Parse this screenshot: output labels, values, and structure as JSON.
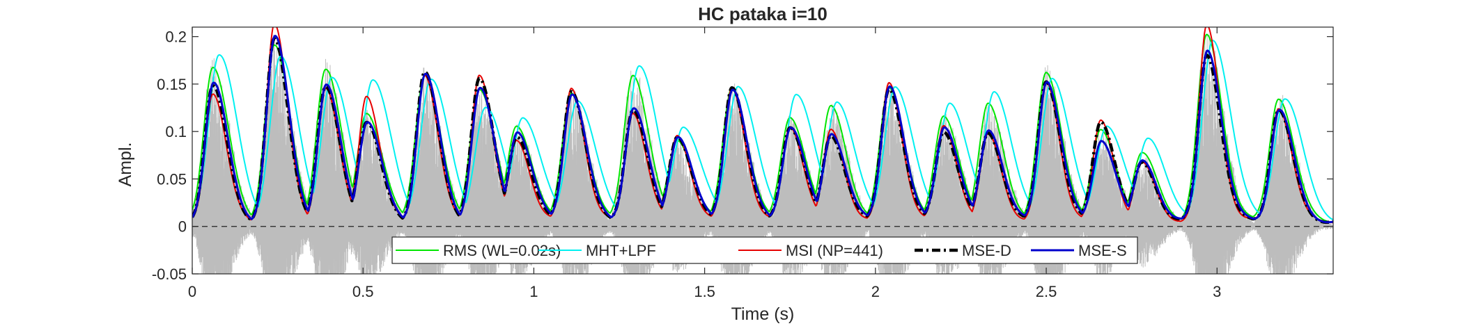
{
  "chart_data": {
    "type": "line",
    "title": "HC pataka i=10",
    "xlabel": "Time (s)",
    "ylabel": "Ampl.",
    "xlim": [
      0,
      3.34
    ],
    "ylim": [
      -0.05,
      0.21
    ],
    "xticks": [
      0,
      0.5,
      1,
      1.5,
      2,
      2.5,
      3
    ],
    "xtick_labels": [
      "0",
      "0.5",
      "1",
      "1.5",
      "2",
      "2.5",
      "3"
    ],
    "yticks": [
      -0.05,
      0,
      0.05,
      0.1,
      0.15,
      0.2
    ],
    "ytick_labels": [
      "-0.05",
      "0",
      "0.05",
      "0.1",
      "0.15",
      "0.2"
    ],
    "grid": false,
    "legend_position": "bottom-center",
    "waveform": {
      "color": "#bdbdbd",
      "description_note": ""
    },
    "peaks": [
      {
        "t": 0.06,
        "rms": 0.163,
        "mht": 0.175,
        "msi": 0.135,
        "msed": 0.142,
        "mses": 0.145
      },
      {
        "t": 0.24,
        "rms": 0.185,
        "mht": 0.172,
        "msi": 0.207,
        "msed": 0.19,
        "mses": 0.193
      },
      {
        "t": 0.39,
        "rms": 0.16,
        "mht": 0.15,
        "msi": 0.14,
        "msed": 0.14,
        "mses": 0.142
      },
      {
        "t": 0.51,
        "rms": 0.115,
        "mht": 0.15,
        "msi": 0.133,
        "msed": 0.105,
        "mses": 0.105
      },
      {
        "t": 0.68,
        "rms": 0.155,
        "mht": 0.15,
        "msi": 0.155,
        "msed": 0.157,
        "mses": 0.155
      },
      {
        "t": 0.84,
        "rms": 0.14,
        "mht": 0.12,
        "msi": 0.155,
        "msed": 0.15,
        "mses": 0.14
      },
      {
        "t": 0.95,
        "rms": 0.1,
        "mht": 0.11,
        "msi": 0.085,
        "msed": 0.09,
        "mses": 0.095
      },
      {
        "t": 1.11,
        "rms": 0.135,
        "mht": 0.128,
        "msi": 0.14,
        "msed": 0.138,
        "mses": 0.135
      },
      {
        "t": 1.29,
        "rms": 0.155,
        "mht": 0.165,
        "msi": 0.115,
        "msed": 0.118,
        "mses": 0.12
      },
      {
        "t": 1.42,
        "rms": 0.085,
        "mht": 0.1,
        "msi": 0.09,
        "msed": 0.09,
        "mses": 0.09
      },
      {
        "t": 1.58,
        "rms": 0.14,
        "mht": 0.143,
        "msi": 0.14,
        "msed": 0.142,
        "mses": 0.14
      },
      {
        "t": 1.75,
        "rms": 0.11,
        "mht": 0.135,
        "msi": 0.1,
        "msed": 0.1,
        "mses": 0.1
      },
      {
        "t": 1.87,
        "rms": 0.12,
        "mht": 0.125,
        "msi": 0.095,
        "msed": 0.09,
        "mses": 0.092
      },
      {
        "t": 2.04,
        "rms": 0.14,
        "mht": 0.142,
        "msi": 0.145,
        "msed": 0.14,
        "mses": 0.143
      },
      {
        "t": 2.2,
        "rms": 0.11,
        "mht": 0.125,
        "msi": 0.1,
        "msed": 0.095,
        "mses": 0.1
      },
      {
        "t": 2.33,
        "rms": 0.122,
        "mht": 0.135,
        "msi": 0.09,
        "msed": 0.092,
        "mses": 0.095
      },
      {
        "t": 2.5,
        "rms": 0.155,
        "mht": 0.15,
        "msi": 0.145,
        "msed": 0.147,
        "mses": 0.147
      },
      {
        "t": 2.66,
        "rms": 0.095,
        "mht": 0.1,
        "msi": 0.105,
        "msed": 0.105,
        "mses": 0.085
      },
      {
        "t": 2.78,
        "rms": 0.07,
        "mht": 0.085,
        "msi": 0.06,
        "msed": 0.06,
        "mses": 0.062
      },
      {
        "t": 2.97,
        "rms": 0.195,
        "mht": 0.19,
        "msi": 0.205,
        "msed": 0.175,
        "mses": 0.18
      },
      {
        "t": 3.18,
        "rms": 0.13,
        "mht": 0.13,
        "msi": 0.12,
        "msed": 0.118,
        "mses": 0.118
      }
    ],
    "series": [
      {
        "key": "rms",
        "name": "RMS (WL=0.02s)",
        "color": "#00e600",
        "width": 2,
        "dash": "",
        "lag": 0.0,
        "decay": 1.0
      },
      {
        "key": "mht",
        "name": "MHT+LPF",
        "color": "#00f0f0",
        "width": 2,
        "dash": "",
        "lag": 0.018,
        "decay": 1.15
      },
      {
        "key": "msi",
        "name": "MSI (NP=441)",
        "color": "#e60000",
        "width": 2,
        "dash": "",
        "lag": 0.0,
        "decay": 0.85
      },
      {
        "key": "msed",
        "name": "MSE-D",
        "color": "#000000",
        "width": 4.5,
        "dash": "12,5,3,5",
        "lag": 0.0,
        "decay": 0.9
      },
      {
        "key": "mses",
        "name": "MSE-S",
        "color": "#0000cc",
        "width": 3,
        "dash": "",
        "lag": 0.002,
        "decay": 0.92
      }
    ]
  }
}
